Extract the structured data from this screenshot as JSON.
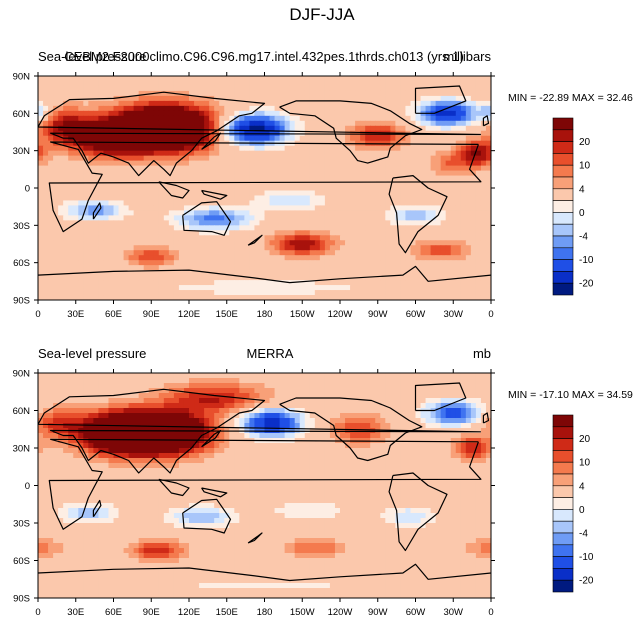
{
  "figure_title": "DJF-JJA",
  "colors": {
    "levels": [
      "#001a80",
      "#0a2fc8",
      "#1f4fe6",
      "#3f73f0",
      "#6f9cf5",
      "#a8c6fa",
      "#d8e8fd",
      "#fdeee4",
      "#fbc8ac",
      "#f8a078",
      "#f47a4e",
      "#e84f2c",
      "#cf2a17",
      "#a8120c",
      "#7e0606"
    ],
    "coast": "#000000",
    "frame": "#000000"
  },
  "chart_data": [
    {
      "type": "heatmap",
      "panel": "top",
      "left_label": "Sea-level pressure",
      "center_label": "CEBM2.F2000climo.C96.C96.mg17.intel.432pes.1thrds.ch013 (yrs 1)",
      "right_label": "millibars",
      "stats": "MIN = -22.89 MAX =  32.46",
      "xlim": [
        0,
        360
      ],
      "ylim": [
        -90,
        90
      ],
      "xticks": [
        "0",
        "30E",
        "60E",
        "90E",
        "120E",
        "150E",
        "180",
        "150W",
        "120W",
        "90W",
        "60W",
        "30W",
        "0"
      ],
      "yticks": [
        "90N",
        "60N",
        "30N",
        "0",
        "30S",
        "60S",
        "90S"
      ],
      "colorbar_levels": [
        -24,
        -20,
        -16,
        -12,
        -10,
        -8,
        -6,
        -4,
        -2,
        0,
        2,
        4,
        6,
        8,
        10,
        12,
        16,
        20,
        24
      ],
      "colorbar_labels": [
        "20",
        "10",
        "4",
        "0",
        "-4",
        "-10",
        "-20"
      ],
      "anomalies": [
        {
          "lon": 100,
          "lat": 48,
          "value": 30,
          "sx": 40,
          "sy": 18
        },
        {
          "lon": 55,
          "lat": 40,
          "value": 16,
          "sx": 30,
          "sy": 14
        },
        {
          "lon": 20,
          "lat": 50,
          "value": 10,
          "sx": 22,
          "sy": 14
        },
        {
          "lon": 270,
          "lat": 42,
          "value": 10,
          "sx": 22,
          "sy": 10
        },
        {
          "lon": 350,
          "lat": 28,
          "value": 12,
          "sx": 14,
          "sy": 10
        },
        {
          "lon": 330,
          "lat": 20,
          "value": 6,
          "sx": 18,
          "sy": 10
        },
        {
          "lon": 172,
          "lat": 47,
          "value": -22,
          "sx": 26,
          "sy": 12
        },
        {
          "lon": 325,
          "lat": 60,
          "value": -18,
          "sx": 22,
          "sy": 10
        },
        {
          "lon": 0,
          "lat": 60,
          "value": -8,
          "sx": 10,
          "sy": 8
        },
        {
          "lon": 45,
          "lat": -18,
          "value": -9,
          "sx": 24,
          "sy": 8
        },
        {
          "lon": 140,
          "lat": -25,
          "value": -11,
          "sx": 30,
          "sy": 9
        },
        {
          "lon": 200,
          "lat": -10,
          "value": -6,
          "sx": 28,
          "sy": 8
        },
        {
          "lon": 300,
          "lat": -22,
          "value": -7,
          "sx": 22,
          "sy": 8
        },
        {
          "lon": 210,
          "lat": -45,
          "value": 12,
          "sx": 24,
          "sy": 9
        },
        {
          "lon": 90,
          "lat": -55,
          "value": 8,
          "sx": 20,
          "sy": 8
        },
        {
          "lon": 320,
          "lat": -50,
          "value": 7,
          "sx": 22,
          "sy": 8
        },
        {
          "lon": 180,
          "lat": -80,
          "value": -4,
          "sx": 80,
          "sy": 6
        }
      ]
    },
    {
      "type": "heatmap",
      "panel": "bottom",
      "left_label": "Sea-level pressure",
      "center_label": "MERRA",
      "right_label": "mb",
      "stats": "MIN = -17.10 MAX =  34.59",
      "xlim": [
        0,
        360
      ],
      "ylim": [
        -90,
        90
      ],
      "xticks": [
        "0",
        "30E",
        "60E",
        "90E",
        "120E",
        "150E",
        "180",
        "150W",
        "120W",
        "90W",
        "60W",
        "30W",
        "0"
      ],
      "yticks": [
        "90N",
        "60N",
        "30N",
        "0",
        "30S",
        "60S",
        "90S"
      ],
      "colorbar_levels": [
        -24,
        -20,
        -16,
        -12,
        -10,
        -8,
        -6,
        -4,
        -2,
        0,
        2,
        4,
        6,
        8,
        10,
        12,
        16,
        20,
        24
      ],
      "colorbar_labels": [
        "20",
        "10",
        "4",
        "0",
        "-4",
        "-10",
        "-20"
      ],
      "anomalies": [
        {
          "lon": 95,
          "lat": 42,
          "value": 32,
          "sx": 38,
          "sy": 16
        },
        {
          "lon": 60,
          "lat": 42,
          "value": 16,
          "sx": 30,
          "sy": 16
        },
        {
          "lon": 15,
          "lat": 50,
          "value": 8,
          "sx": 20,
          "sy": 12
        },
        {
          "lon": 140,
          "lat": 70,
          "value": 10,
          "sx": 40,
          "sy": 12
        },
        {
          "lon": 255,
          "lat": 45,
          "value": 8,
          "sx": 22,
          "sy": 12
        },
        {
          "lon": 345,
          "lat": 30,
          "value": 10,
          "sx": 14,
          "sy": 10
        },
        {
          "lon": 185,
          "lat": 50,
          "value": -18,
          "sx": 24,
          "sy": 11
        },
        {
          "lon": 330,
          "lat": 58,
          "value": -14,
          "sx": 22,
          "sy": 10
        },
        {
          "lon": 40,
          "lat": -22,
          "value": -7,
          "sx": 22,
          "sy": 8
        },
        {
          "lon": 130,
          "lat": -25,
          "value": -8,
          "sx": 26,
          "sy": 8
        },
        {
          "lon": 215,
          "lat": -20,
          "value": -4,
          "sx": 30,
          "sy": 8
        },
        {
          "lon": 295,
          "lat": -25,
          "value": -6,
          "sx": 20,
          "sy": 8
        },
        {
          "lon": 95,
          "lat": -52,
          "value": 10,
          "sx": 20,
          "sy": 8
        },
        {
          "lon": 220,
          "lat": -50,
          "value": 6,
          "sx": 24,
          "sy": 8
        },
        {
          "lon": 0,
          "lat": -50,
          "value": 5,
          "sx": 20,
          "sy": 8
        },
        {
          "lon": 180,
          "lat": -80,
          "value": -3,
          "sx": 80,
          "sy": 6
        }
      ]
    }
  ]
}
